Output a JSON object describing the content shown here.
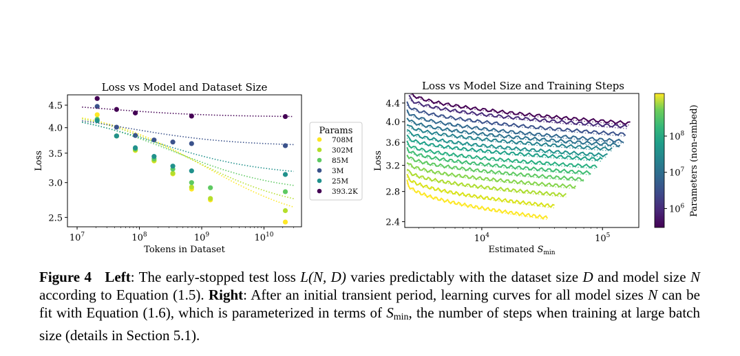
{
  "chart_data": [
    {
      "type": "scatter",
      "title": "Loss vs Model and Dataset Size",
      "xlabel": "Tokens in Dataset",
      "ylabel": "Loss",
      "xscale": "log",
      "yscale": "log",
      "xlim": [
        7000000,
        40000000000
      ],
      "ylim": [
        2.38,
        4.75
      ],
      "xticks": [
        {
          "value": 10000000,
          "base": "10",
          "exp": "7"
        },
        {
          "value": 100000000,
          "base": "10",
          "exp": "8"
        },
        {
          "value": 1000000000,
          "base": "10",
          "exp": "9"
        },
        {
          "value": 10000000000,
          "base": "10",
          "exp": "10"
        }
      ],
      "yticks": [
        {
          "value": 2.5,
          "label": "2.5"
        },
        {
          "value": 3.0,
          "label": "3.0"
        },
        {
          "value": 3.5,
          "label": "3.5"
        },
        {
          "value": 4.0,
          "label": "4.0"
        },
        {
          "value": 4.5,
          "label": "4.5"
        }
      ],
      "legend": {
        "title": "Params",
        "placement": "outside-right"
      },
      "series": [
        {
          "name": "708M",
          "color": "#fde725",
          "points": [
            [
              21000000,
              4.28
            ],
            [
              43000000,
              3.83
            ],
            [
              86000000,
              3.55
            ],
            [
              172000000,
              3.36
            ],
            [
              344000000,
              3.14
            ],
            [
              688000000,
              2.9
            ],
            [
              1380000000,
              2.74
            ],
            [
              22000000000,
              2.44
            ]
          ],
          "fit": {
            "L_inf": 2.38,
            "a": 2.09,
            "d0": 600000000
          }
        },
        {
          "name": "302M",
          "color": "#b5de2b",
          "points": [
            [
              21000000,
              4.18
            ],
            [
              43000000,
              3.83
            ],
            [
              86000000,
              3.56
            ],
            [
              172000000,
              3.37
            ],
            [
              344000000,
              3.15
            ],
            [
              688000000,
              2.93
            ],
            [
              1380000000,
              2.76
            ],
            [
              22000000000,
              2.59
            ]
          ],
          "fit": {
            "L_inf": 2.56,
            "a": 1.91,
            "d0": 400000000
          }
        },
        {
          "name": "85M",
          "color": "#5ec962",
          "points": [
            [
              21000000,
              4.18
            ],
            [
              43000000,
              3.83
            ],
            [
              86000000,
              3.58
            ],
            [
              172000000,
              3.4
            ],
            [
              344000000,
              3.22
            ],
            [
              688000000,
              3.0
            ],
            [
              1380000000,
              2.92
            ],
            [
              22000000000,
              2.86
            ]
          ],
          "fit": {
            "L_inf": 2.83,
            "a": 1.59,
            "d0": 220000000
          }
        },
        {
          "name": "3M",
          "color": "#3b528b",
          "points": [
            [
              21000000,
              4.47
            ],
            [
              43000000,
              4.01
            ],
            [
              86000000,
              3.84
            ],
            [
              172000000,
              3.75
            ],
            [
              344000000,
              3.71
            ],
            [
              688000000,
              3.68
            ],
            [
              22000000000,
              3.64
            ]
          ],
          "fit": {
            "L_inf": 3.63,
            "a": 0.77,
            "d0": 50000000
          }
        },
        {
          "name": "25M",
          "color": "#21918c",
          "points": [
            [
              21000000,
              4.15
            ],
            [
              43000000,
              3.83
            ],
            [
              86000000,
              3.6
            ],
            [
              172000000,
              3.44
            ],
            [
              344000000,
              3.27
            ],
            [
              688000000,
              3.19
            ],
            [
              22000000000,
              3.13
            ]
          ],
          "fit": {
            "L_inf": 3.1,
            "a": 1.32,
            "d0": 130000000
          }
        },
        {
          "name": "393.2K",
          "color": "#440154",
          "points": [
            [
              21000000,
              4.66
            ],
            [
              43000000,
              4.4
            ],
            [
              86000000,
              4.32
            ],
            [
              688000000,
              4.25
            ],
            [
              22000000000,
              4.24
            ]
          ],
          "fit": {
            "L_inf": 4.23,
            "a": 0.38,
            "d0": 25000000
          }
        }
      ]
    },
    {
      "type": "line",
      "title": "Loss vs Model Size and Training Steps",
      "xlabel_main": "Estimated ",
      "xlabel_sym": "S",
      "xlabel_sub": "min",
      "ylabel": "Loss",
      "xscale": "log",
      "yscale": "log",
      "xlim": [
        2300,
        200000
      ],
      "ylim": [
        2.33,
        4.62
      ],
      "xticks": [
        {
          "value": 10000,
          "base": "10",
          "exp": "4"
        },
        {
          "value": 100000,
          "base": "10",
          "exp": "5"
        }
      ],
      "yticks": [
        {
          "value": 2.4,
          "label": "2.4"
        },
        {
          "value": 2.8,
          "label": "2.8"
        },
        {
          "value": 3.2,
          "label": "3.2"
        },
        {
          "value": 3.6,
          "label": "3.6"
        },
        {
          "value": 4.0,
          "label": "4.0"
        },
        {
          "value": 4.4,
          "label": "4.4"
        }
      ],
      "colorbar": {
        "label": "Parameters (non-embed)",
        "scale": "log",
        "range": [
          300000,
          1500000000
        ],
        "ticks": [
          {
            "value": 1000000,
            "base": "10",
            "exp": "6"
          },
          {
            "value": 10000000,
            "base": "10",
            "exp": "7"
          },
          {
            "value": 100000000,
            "base": "10",
            "exp": "8"
          }
        ]
      },
      "curves": [
        {
          "color": "#440154",
          "start": [
            2500,
            4.7
          ],
          "end": [
            170000,
            3.97
          ]
        },
        {
          "color": "#472c7a",
          "start": [
            2500,
            4.55
          ],
          "end": [
            160000,
            3.9
          ]
        },
        {
          "color": "#3b528b",
          "start": [
            2400,
            4.4
          ],
          "end": [
            155000,
            3.75
          ]
        },
        {
          "color": "#31688e",
          "start": [
            2400,
            4.25
          ],
          "end": [
            150000,
            3.62
          ]
        },
        {
          "color": "#2c728e",
          "start": [
            2400,
            4.1
          ],
          "end": [
            140000,
            3.55
          ]
        },
        {
          "color": "#26828e",
          "start": [
            2400,
            3.97
          ],
          "end": [
            120000,
            3.48
          ]
        },
        {
          "color": "#21918c",
          "start": [
            2400,
            3.85
          ],
          "end": [
            110000,
            3.37
          ]
        },
        {
          "color": "#1fa088",
          "start": [
            2400,
            3.72
          ],
          "end": [
            100000,
            3.3
          ]
        },
        {
          "color": "#28ae80",
          "start": [
            2400,
            3.6
          ],
          "end": [
            90000,
            3.18
          ]
        },
        {
          "color": "#3fbc73",
          "start": [
            2400,
            3.5
          ],
          "end": [
            80000,
            3.08
          ]
        },
        {
          "color": "#5ec962",
          "start": [
            2400,
            3.39
          ],
          "end": [
            70000,
            2.98
          ]
        },
        {
          "color": "#84d44b",
          "start": [
            2400,
            3.27
          ],
          "end": [
            60000,
            2.87
          ]
        },
        {
          "color": "#addc30",
          "start": [
            2400,
            3.15
          ],
          "end": [
            50000,
            2.75
          ]
        },
        {
          "color": "#d8e219",
          "start": [
            2400,
            3.05
          ],
          "end": [
            40000,
            2.6
          ]
        },
        {
          "color": "#fde725",
          "start": [
            2400,
            2.95
          ],
          "end": [
            35000,
            2.45
          ]
        }
      ]
    }
  ],
  "caption": {
    "figure_label": "Figure 4",
    "left_label": "Left",
    "text1": ": The early-stopped test loss ",
    "eq1": "L(N, D)",
    "text2": " varies predictably with the dataset size ",
    "var_D": "D",
    "text3": " and model size ",
    "var_N": "N",
    "text4": " according to Equation (1.5). ",
    "right_label": "Right",
    "text5": ": After an initial transient period, learning curves for all model sizes ",
    "var_N2": "N",
    "text6": " can be fit with Equation (1.6), which is parameterized in terms of ",
    "var_S": "S",
    "var_S_sub": "min",
    "text7": ", the number of steps when training at large batch size (details in Section 5.1)."
  }
}
